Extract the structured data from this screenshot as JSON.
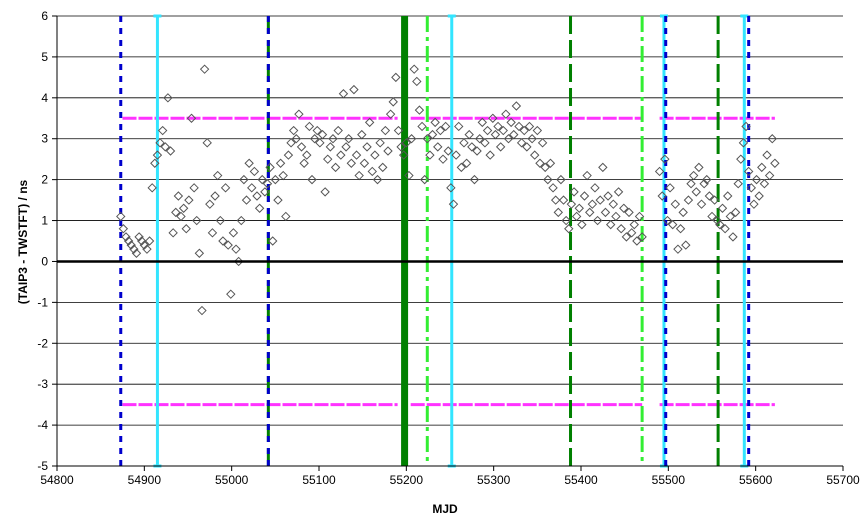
{
  "chart_data": {
    "type": "scatter",
    "xlabel": "MJD",
    "ylabel": "(TAIP3 - TWSTFT) / ns",
    "xlim": [
      54800,
      55700
    ],
    "ylim": [
      -5,
      6
    ],
    "x_ticks": [
      54800,
      54900,
      55000,
      55100,
      55200,
      55300,
      55400,
      55500,
      55600,
      55700
    ],
    "y_ticks": [
      -5,
      -4,
      -3,
      -2,
      -1,
      0,
      1,
      2,
      3,
      4,
      5,
      6
    ],
    "grid": "horizontal",
    "legend": "none",
    "marker": "open-diamond",
    "colors": {
      "points": "#555555",
      "limits": "#ff33ff",
      "blue_dashed": "#0000cc",
      "cyan_solid": "#33e5ff",
      "dark_green": "#008000",
      "light_green": "#33ee33",
      "zero_line": "#000000"
    },
    "limit_segments": [
      {
        "y": 3.5,
        "x0": 54875,
        "x1": 55190
      },
      {
        "y": 3.5,
        "x0": 55205,
        "x1": 55470
      },
      {
        "y": 3.5,
        "x0": 55490,
        "x1": 55622
      },
      {
        "y": -3.5,
        "x0": 54875,
        "x1": 55190
      },
      {
        "y": -3.5,
        "x0": 55205,
        "x1": 55470
      },
      {
        "y": -3.5,
        "x0": 55490,
        "x1": 55622
      }
    ],
    "vertical_lines": [
      {
        "x": 54873,
        "style": "blue_dashed"
      },
      {
        "x": 54915,
        "style": "cyan_solid"
      },
      {
        "x": 55042,
        "style": "dark_green_dashed"
      },
      {
        "x": 55042,
        "style": "blue_dashed"
      },
      {
        "x": 55198,
        "style": "dark_green_thick"
      },
      {
        "x": 55224,
        "style": "light_green_dashdot"
      },
      {
        "x": 55252,
        "style": "cyan_solid"
      },
      {
        "x": 55388,
        "style": "dark_green_dashed"
      },
      {
        "x": 55470,
        "style": "light_green_dashdot"
      },
      {
        "x": 55495,
        "style": "cyan_solid"
      },
      {
        "x": 55497,
        "style": "blue_dashed"
      },
      {
        "x": 55557,
        "style": "dark_green_dashed"
      },
      {
        "x": 55587,
        "style": "cyan_solid"
      },
      {
        "x": 55592,
        "style": "blue_dashed"
      }
    ],
    "series": [
      {
        "points": [
          [
            54873,
            1.1
          ],
          [
            54876,
            0.8
          ],
          [
            54879,
            0.6
          ],
          [
            54882,
            0.5
          ],
          [
            54885,
            0.4
          ],
          [
            54888,
            0.3
          ],
          [
            54891,
            0.2
          ],
          [
            54894,
            0.6
          ],
          [
            54897,
            0.5
          ],
          [
            54900,
            0.4
          ],
          [
            54903,
            0.3
          ],
          [
            54906,
            0.5
          ],
          [
            54909,
            1.8
          ],
          [
            54912,
            2.4
          ],
          [
            54915,
            2.6
          ],
          [
            54918,
            2.9
          ],
          [
            54921,
            3.2
          ],
          [
            54924,
            2.8
          ],
          [
            54927,
            4.0
          ],
          [
            54930,
            2.7
          ],
          [
            54933,
            0.7
          ],
          [
            54936,
            1.2
          ],
          [
            54939,
            1.6
          ],
          [
            54942,
            1.1
          ],
          [
            54945,
            1.3
          ],
          [
            54948,
            0.8
          ],
          [
            54951,
            1.5
          ],
          [
            54954,
            3.5
          ],
          [
            54957,
            1.8
          ],
          [
            54960,
            1.0
          ],
          [
            54963,
            0.2
          ],
          [
            54966,
            -1.2
          ],
          [
            54969,
            4.7
          ],
          [
            54972,
            2.9
          ],
          [
            54975,
            1.4
          ],
          [
            54978,
            0.7
          ],
          [
            54981,
            1.6
          ],
          [
            54984,
            2.1
          ],
          [
            54987,
            1.0
          ],
          [
            54990,
            0.5
          ],
          [
            54993,
            1.8
          ],
          [
            54996,
            0.4
          ],
          [
            54999,
            -0.8
          ],
          [
            55002,
            0.7
          ],
          [
            55005,
            0.3
          ],
          [
            55008,
            0.0
          ],
          [
            55011,
            1.0
          ],
          [
            55014,
            2.0
          ],
          [
            55017,
            1.5
          ],
          [
            55020,
            2.4
          ],
          [
            55023,
            1.8
          ],
          [
            55026,
            2.2
          ],
          [
            55029,
            1.6
          ],
          [
            55032,
            1.3
          ],
          [
            55035,
            2.0
          ],
          [
            55038,
            1.7
          ],
          [
            55041,
            1.9
          ],
          [
            55044,
            2.3
          ],
          [
            55047,
            0.5
          ],
          [
            55050,
            2.0
          ],
          [
            55053,
            1.5
          ],
          [
            55056,
            2.4
          ],
          [
            55059,
            2.1
          ],
          [
            55062,
            1.1
          ],
          [
            55065,
            2.6
          ],
          [
            55068,
            2.9
          ],
          [
            55071,
            3.2
          ],
          [
            55074,
            3.0
          ],
          [
            55077,
            3.6
          ],
          [
            55080,
            2.8
          ],
          [
            55083,
            2.4
          ],
          [
            55086,
            2.6
          ],
          [
            55089,
            3.3
          ],
          [
            55092,
            2.0
          ],
          [
            55095,
            3.0
          ],
          [
            55098,
            3.2
          ],
          [
            55101,
            2.9
          ],
          [
            55104,
            3.1
          ],
          [
            55107,
            1.7
          ],
          [
            55110,
            2.5
          ],
          [
            55113,
            2.8
          ],
          [
            55116,
            3.0
          ],
          [
            55119,
            2.3
          ],
          [
            55122,
            3.2
          ],
          [
            55125,
            2.6
          ],
          [
            55128,
            4.1
          ],
          [
            55131,
            2.8
          ],
          [
            55134,
            3.0
          ],
          [
            55137,
            2.4
          ],
          [
            55140,
            4.2
          ],
          [
            55143,
            2.6
          ],
          [
            55146,
            2.1
          ],
          [
            55149,
            3.1
          ],
          [
            55152,
            2.4
          ],
          [
            55155,
            2.8
          ],
          [
            55158,
            3.4
          ],
          [
            55161,
            2.2
          ],
          [
            55164,
            2.6
          ],
          [
            55167,
            2.0
          ],
          [
            55170,
            2.9
          ],
          [
            55173,
            2.3
          ],
          [
            55176,
            3.2
          ],
          [
            55179,
            2.7
          ],
          [
            55182,
            3.6
          ],
          [
            55185,
            3.9
          ],
          [
            55188,
            4.5
          ],
          [
            55191,
            3.2
          ],
          [
            55194,
            2.8
          ],
          [
            55197,
            2.6
          ],
          [
            55200,
            2.9
          ],
          [
            55203,
            2.1
          ],
          [
            55206,
            3.0
          ],
          [
            55209,
            4.7
          ],
          [
            55212,
            4.4
          ],
          [
            55215,
            3.7
          ],
          [
            55218,
            3.3
          ],
          [
            55221,
            2.0
          ],
          [
            55224,
            3.0
          ],
          [
            55227,
            2.6
          ],
          [
            55230,
            3.1
          ],
          [
            55233,
            3.4
          ],
          [
            55236,
            2.8
          ],
          [
            55239,
            3.2
          ],
          [
            55242,
            2.5
          ],
          [
            55245,
            3.3
          ],
          [
            55248,
            2.7
          ],
          [
            55251,
            1.8
          ],
          [
            55254,
            1.4
          ],
          [
            55257,
            2.6
          ],
          [
            55260,
            3.3
          ],
          [
            55263,
            2.3
          ],
          [
            55266,
            2.9
          ],
          [
            55269,
            2.4
          ],
          [
            55272,
            3.1
          ],
          [
            55275,
            2.8
          ],
          [
            55278,
            2.0
          ],
          [
            55281,
            2.7
          ],
          [
            55284,
            3.0
          ],
          [
            55287,
            3.4
          ],
          [
            55290,
            2.9
          ],
          [
            55293,
            3.2
          ],
          [
            55296,
            2.6
          ],
          [
            55299,
            3.5
          ],
          [
            55302,
            3.1
          ],
          [
            55305,
            3.3
          ],
          [
            55308,
            2.8
          ],
          [
            55311,
            3.2
          ],
          [
            55314,
            3.6
          ],
          [
            55317,
            3.0
          ],
          [
            55320,
            3.4
          ],
          [
            55323,
            3.1
          ],
          [
            55326,
            3.8
          ],
          [
            55329,
            3.3
          ],
          [
            55332,
            2.9
          ],
          [
            55335,
            3.2
          ],
          [
            55338,
            2.8
          ],
          [
            55341,
            3.3
          ],
          [
            55344,
            3.0
          ],
          [
            55347,
            2.6
          ],
          [
            55350,
            3.2
          ],
          [
            55353,
            2.4
          ],
          [
            55356,
            2.9
          ],
          [
            55359,
            2.3
          ],
          [
            55362,
            2.0
          ],
          [
            55365,
            2.4
          ],
          [
            55368,
            1.8
          ],
          [
            55371,
            1.5
          ],
          [
            55374,
            1.2
          ],
          [
            55377,
            2.0
          ],
          [
            55380,
            1.5
          ],
          [
            55383,
            1.0
          ],
          [
            55386,
            0.8
          ],
          [
            55389,
            1.4
          ],
          [
            55392,
            1.7
          ],
          [
            55395,
            1.1
          ],
          [
            55398,
            1.3
          ],
          [
            55401,
            0.9
          ],
          [
            55404,
            1.6
          ],
          [
            55407,
            2.1
          ],
          [
            55410,
            1.2
          ],
          [
            55413,
            1.4
          ],
          [
            55416,
            1.8
          ],
          [
            55419,
            1.0
          ],
          [
            55422,
            1.5
          ],
          [
            55425,
            2.3
          ],
          [
            55428,
            1.2
          ],
          [
            55431,
            1.6
          ],
          [
            55434,
            0.9
          ],
          [
            55437,
            1.4
          ],
          [
            55440,
            1.1
          ],
          [
            55443,
            1.7
          ],
          [
            55446,
            0.8
          ],
          [
            55449,
            1.3
          ],
          [
            55452,
            0.6
          ],
          [
            55455,
            1.2
          ],
          [
            55458,
            0.7
          ],
          [
            55461,
            0.9
          ],
          [
            55464,
            0.5
          ],
          [
            55467,
            1.1
          ],
          [
            55470,
            0.6
          ],
          [
            55490,
            2.2
          ],
          [
            55493,
            1.6
          ],
          [
            55496,
            2.5
          ],
          [
            55499,
            1.0
          ],
          [
            55502,
            1.8
          ],
          [
            55505,
            0.9
          ],
          [
            55508,
            1.4
          ],
          [
            55511,
            0.3
          ],
          [
            55514,
            0.8
          ],
          [
            55517,
            1.2
          ],
          [
            55520,
            0.4
          ],
          [
            55523,
            1.5
          ],
          [
            55526,
            1.9
          ],
          [
            55529,
            2.1
          ],
          [
            55532,
            1.7
          ],
          [
            55535,
            2.3
          ],
          [
            55538,
            1.4
          ],
          [
            55541,
            1.9
          ],
          [
            55544,
            2.0
          ],
          [
            55547,
            1.6
          ],
          [
            55550,
            1.1
          ],
          [
            55553,
            1.5
          ],
          [
            55556,
            1.0
          ],
          [
            55559,
            0.9
          ],
          [
            55562,
            1.3
          ],
          [
            55565,
            0.8
          ],
          [
            55568,
            1.6
          ],
          [
            55571,
            1.1
          ],
          [
            55574,
            0.6
          ],
          [
            55577,
            1.2
          ],
          [
            55580,
            1.9
          ],
          [
            55583,
            2.5
          ],
          [
            55586,
            2.9
          ],
          [
            55589,
            3.3
          ],
          [
            55592,
            2.2
          ],
          [
            55595,
            1.8
          ],
          [
            55598,
            1.4
          ],
          [
            55601,
            2.0
          ],
          [
            55604,
            1.6
          ],
          [
            55607,
            2.3
          ],
          [
            55610,
            1.9
          ],
          [
            55613,
            2.6
          ],
          [
            55616,
            2.1
          ],
          [
            55619,
            3.0
          ],
          [
            55622,
            2.4
          ]
        ]
      }
    ]
  }
}
